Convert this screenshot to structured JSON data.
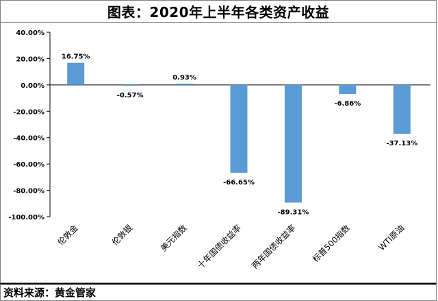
{
  "title": "图表：2020年上半年各类资产收益",
  "source": "资料来源：黄金管家",
  "colors": {
    "bar": "#5b9bd5",
    "axis": "#000000",
    "text": "#000000"
  },
  "chart_data": {
    "type": "bar",
    "title": "图表：2020年上半年各类资产收益",
    "categories": [
      "伦敦金",
      "伦敦银",
      "美元指数",
      "十年国债收益率",
      "两年国债收益率",
      "标普500指数",
      "WTI原油"
    ],
    "values": [
      16.75,
      -0.57,
      0.93,
      -66.65,
      -89.31,
      -6.86,
      -37.13
    ],
    "data_labels": [
      "16.75%",
      "-0.57%",
      "0.93%",
      "-66.65%",
      "-89.31%",
      "-6.86%",
      "-37.13%"
    ],
    "y_ticks": [
      40,
      20,
      0,
      -20,
      -40,
      -60,
      -80,
      -100
    ],
    "y_tick_labels": [
      "40.00%",
      "20.00%",
      "0.00%",
      "-20.00%",
      "-40.00%",
      "-60.00%",
      "-80.00%",
      "-100.00%"
    ],
    "ylim": [
      -100,
      40
    ],
    "grid": false,
    "legend": "none"
  }
}
